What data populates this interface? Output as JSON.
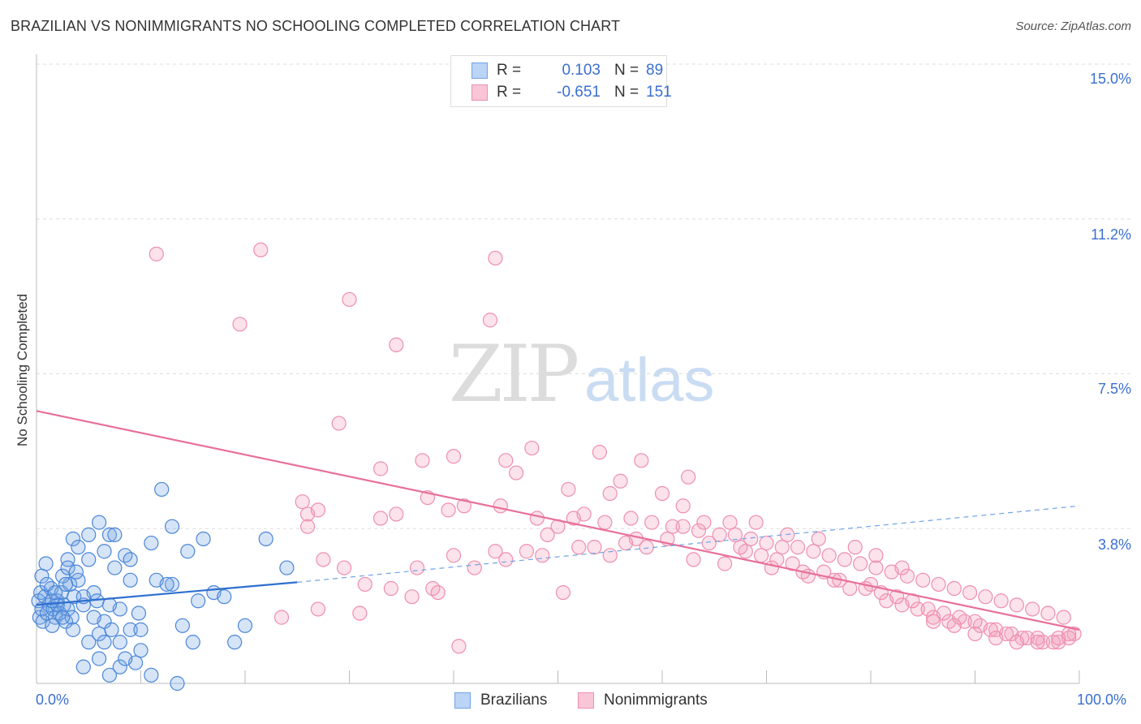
{
  "title": "BRAZILIAN VS NONIMMIGRANTS NO SCHOOLING COMPLETED CORRELATION CHART",
  "source": "Source: ZipAtlas.com",
  "watermark": {
    "zip": "ZIP",
    "atlas": "atlas"
  },
  "legend": {
    "r_label": "R =",
    "n_label": "N =",
    "rows": [
      {
        "r": "0.103",
        "n": "89",
        "color": "#6fa3e8",
        "fill": "#bcd4f5"
      },
      {
        "r": "-0.651",
        "n": "151",
        "color": "#ee8fae",
        "fill": "#f8c6d6"
      }
    ]
  },
  "bottom_legend": [
    {
      "label": "Brazilians"
    },
    {
      "label": "Nonimmigrants"
    }
  ],
  "chart_data": {
    "type": "scatter",
    "xlabel": "",
    "ylabel": "No Schooling Completed",
    "x_ticks": [
      "0.0%",
      "100.0%"
    ],
    "y_ticks": [
      "15.0%",
      "11.2%",
      "7.5%",
      "3.8%"
    ],
    "xlim": [
      0,
      100
    ],
    "ylim": [
      0,
      15.5
    ],
    "grid": true,
    "colors": {
      "brazilians": "#4a86d8",
      "nonimmigrants": "#ea7fa3"
    },
    "series": [
      {
        "name": "Brazilians",
        "trend": {
          "x0": 0,
          "y0": 1.9,
          "x1": 25,
          "y1": 2.45,
          "dash_to_x": 100,
          "dash_to_y": 4.3
        },
        "points": [
          [
            0.2,
            2.0
          ],
          [
            0.3,
            1.6
          ],
          [
            0.4,
            2.2
          ],
          [
            0.5,
            1.8
          ],
          [
            0.6,
            1.5
          ],
          [
            0.8,
            2.1
          ],
          [
            1.0,
            1.7
          ],
          [
            1.2,
            1.9
          ],
          [
            1.4,
            2.3
          ],
          [
            1.6,
            1.8
          ],
          [
            1.8,
            1.6
          ],
          [
            2.0,
            2.0
          ],
          [
            2.2,
            1.7
          ],
          [
            2.4,
            2.2
          ],
          [
            2.6,
            1.9
          ],
          [
            2.8,
            1.5
          ],
          [
            3.0,
            1.8
          ],
          [
            3.2,
            2.4
          ],
          [
            3.4,
            1.6
          ],
          [
            3.6,
            2.1
          ],
          [
            0.5,
            2.6
          ],
          [
            1.0,
            2.4
          ],
          [
            1.5,
            1.4
          ],
          [
            2.0,
            1.9
          ],
          [
            2.5,
            2.6
          ],
          [
            3.0,
            3.0
          ],
          [
            3.5,
            1.3
          ],
          [
            4.0,
            2.5
          ],
          [
            4.5,
            1.9
          ],
          [
            5.0,
            1.0
          ],
          [
            5.5,
            2.2
          ],
          [
            6.0,
            1.2
          ],
          [
            6.5,
            3.2
          ],
          [
            7.0,
            3.6
          ],
          [
            7.5,
            2.8
          ],
          [
            8.0,
            1.8
          ],
          [
            8.5,
            3.1
          ],
          [
            9.0,
            2.5
          ],
          [
            3.5,
            3.5
          ],
          [
            5.0,
            3.6
          ],
          [
            6.0,
            3.9
          ],
          [
            7.5,
            3.6
          ],
          [
            9.0,
            3.0
          ],
          [
            11.0,
            3.4
          ],
          [
            12.0,
            4.7
          ],
          [
            13.0,
            2.4
          ],
          [
            14.0,
            1.4
          ],
          [
            15.0,
            1.0
          ],
          [
            16.0,
            3.5
          ],
          [
            17.0,
            2.2
          ],
          [
            18.0,
            2.1
          ],
          [
            19.0,
            1.0
          ],
          [
            10.0,
            0.8
          ],
          [
            8.0,
            0.4
          ],
          [
            7.0,
            0.2
          ],
          [
            9.5,
            0.5
          ],
          [
            11.0,
            0.2
          ],
          [
            13.5,
            0.0
          ],
          [
            6.0,
            0.6
          ],
          [
            4.5,
            0.4
          ],
          [
            5.0,
            3.0
          ],
          [
            4.0,
            3.3
          ],
          [
            3.0,
            2.8
          ],
          [
            2.5,
            1.6
          ],
          [
            1.5,
            2.0
          ],
          [
            6.5,
            1.5
          ],
          [
            8.0,
            1.0
          ],
          [
            9.0,
            1.3
          ],
          [
            10.0,
            1.3
          ],
          [
            11.5,
            2.5
          ],
          [
            12.5,
            2.4
          ],
          [
            13.0,
            3.8
          ],
          [
            14.5,
            3.2
          ],
          [
            15.5,
            2.0
          ],
          [
            20.0,
            1.4
          ],
          [
            22.0,
            3.5
          ],
          [
            24.0,
            2.8
          ],
          [
            7.0,
            1.9
          ],
          [
            5.5,
            1.6
          ],
          [
            6.5,
            1.0
          ],
          [
            8.5,
            0.6
          ],
          [
            4.5,
            2.1
          ],
          [
            3.8,
            2.7
          ],
          [
            2.8,
            2.4
          ],
          [
            1.8,
            2.2
          ],
          [
            0.9,
            2.9
          ],
          [
            5.8,
            2.0
          ],
          [
            7.2,
            1.3
          ],
          [
            9.8,
            1.7
          ]
        ]
      },
      {
        "name": "Nonimmigrants",
        "trend": {
          "x0": 0,
          "y0": 6.6,
          "x1": 100,
          "y1": 1.3
        },
        "points": [
          [
            11.5,
            10.4
          ],
          [
            21.5,
            10.5
          ],
          [
            19.5,
            8.7
          ],
          [
            30.0,
            9.3
          ],
          [
            34.5,
            8.2
          ],
          [
            43.5,
            8.8
          ],
          [
            44.0,
            10.3
          ],
          [
            29.0,
            6.3
          ],
          [
            33.0,
            5.2
          ],
          [
            37.0,
            5.4
          ],
          [
            40.0,
            5.5
          ],
          [
            45.0,
            5.4
          ],
          [
            46.0,
            5.1
          ],
          [
            47.5,
            5.7
          ],
          [
            51.0,
            4.7
          ],
          [
            54.0,
            5.6
          ],
          [
            55.0,
            4.6
          ],
          [
            56.0,
            4.9
          ],
          [
            58.0,
            5.4
          ],
          [
            60.0,
            4.6
          ],
          [
            62.5,
            5.0
          ],
          [
            25.5,
            4.4
          ],
          [
            26.0,
            4.1
          ],
          [
            27.0,
            4.2
          ],
          [
            33.0,
            4.0
          ],
          [
            34.5,
            4.1
          ],
          [
            37.5,
            4.5
          ],
          [
            39.5,
            4.2
          ],
          [
            41.0,
            4.3
          ],
          [
            44.5,
            4.3
          ],
          [
            48.0,
            4.0
          ],
          [
            50.0,
            3.8
          ],
          [
            51.5,
            4.0
          ],
          [
            52.5,
            4.1
          ],
          [
            54.5,
            3.9
          ],
          [
            57.0,
            4.0
          ],
          [
            59.0,
            3.9
          ],
          [
            61.0,
            3.8
          ],
          [
            62.0,
            3.8
          ],
          [
            63.5,
            3.7
          ],
          [
            65.5,
            3.6
          ],
          [
            67.0,
            3.6
          ],
          [
            68.5,
            3.5
          ],
          [
            70.0,
            3.4
          ],
          [
            71.5,
            3.3
          ],
          [
            73.0,
            3.3
          ],
          [
            74.5,
            3.2
          ],
          [
            76.0,
            3.1
          ],
          [
            77.5,
            3.0
          ],
          [
            79.0,
            2.9
          ],
          [
            80.5,
            2.8
          ],
          [
            82.0,
            2.7
          ],
          [
            83.5,
            2.6
          ],
          [
            85.0,
            2.5
          ],
          [
            86.5,
            2.4
          ],
          [
            88.0,
            2.3
          ],
          [
            89.5,
            2.2
          ],
          [
            91.0,
            2.1
          ],
          [
            92.5,
            2.0
          ],
          [
            94.0,
            1.9
          ],
          [
            95.5,
            1.8
          ],
          [
            97.0,
            1.7
          ],
          [
            98.5,
            1.6
          ],
          [
            99.5,
            1.2
          ],
          [
            26.0,
            3.8
          ],
          [
            27.5,
            3.0
          ],
          [
            29.5,
            2.8
          ],
          [
            31.5,
            2.4
          ],
          [
            34.0,
            2.3
          ],
          [
            36.0,
            2.1
          ],
          [
            38.0,
            2.3
          ],
          [
            40.0,
            3.1
          ],
          [
            42.0,
            2.8
          ],
          [
            45.0,
            3.0
          ],
          [
            47.0,
            3.2
          ],
          [
            49.0,
            3.6
          ],
          [
            52.0,
            3.3
          ],
          [
            55.0,
            3.1
          ],
          [
            57.5,
            3.5
          ],
          [
            60.5,
            3.5
          ],
          [
            63.0,
            3.0
          ],
          [
            66.0,
            2.9
          ],
          [
            68.0,
            3.2
          ],
          [
            70.5,
            2.8
          ],
          [
            72.5,
            2.9
          ],
          [
            74.0,
            2.6
          ],
          [
            76.5,
            2.5
          ],
          [
            78.0,
            2.3
          ],
          [
            80.0,
            2.4
          ],
          [
            81.5,
            2.0
          ],
          [
            83.0,
            1.9
          ],
          [
            84.5,
            1.8
          ],
          [
            86.0,
            1.6
          ],
          [
            87.5,
            1.5
          ],
          [
            89.0,
            1.5
          ],
          [
            90.5,
            1.4
          ],
          [
            92.0,
            1.3
          ],
          [
            93.5,
            1.2
          ],
          [
            95.0,
            1.1
          ],
          [
            96.5,
            1.0
          ],
          [
            98.0,
            1.0
          ],
          [
            99.0,
            1.1
          ],
          [
            23.5,
            1.6
          ],
          [
            27.0,
            1.8
          ],
          [
            38.5,
            2.2
          ],
          [
            40.5,
            0.9
          ],
          [
            50.5,
            2.2
          ],
          [
            31.0,
            1.7
          ],
          [
            36.5,
            2.8
          ],
          [
            44.0,
            3.2
          ],
          [
            48.5,
            3.1
          ],
          [
            53.5,
            3.3
          ],
          [
            56.5,
            3.4
          ],
          [
            58.5,
            3.3
          ],
          [
            64.5,
            3.4
          ],
          [
            67.5,
            3.3
          ],
          [
            69.5,
            3.1
          ],
          [
            71.0,
            3.0
          ],
          [
            73.5,
            2.7
          ],
          [
            75.5,
            2.7
          ],
          [
            77.0,
            2.5
          ],
          [
            79.5,
            2.3
          ],
          [
            81.0,
            2.2
          ],
          [
            82.5,
            2.1
          ],
          [
            84.0,
            2.0
          ],
          [
            85.5,
            1.8
          ],
          [
            87.0,
            1.7
          ],
          [
            88.5,
            1.6
          ],
          [
            90.0,
            1.5
          ],
          [
            91.5,
            1.3
          ],
          [
            93.0,
            1.2
          ],
          [
            94.5,
            1.1
          ],
          [
            96.0,
            1.1
          ],
          [
            97.5,
            1.0
          ],
          [
            99.0,
            1.2
          ],
          [
            86.0,
            1.5
          ],
          [
            88.0,
            1.4
          ],
          [
            90.0,
            1.2
          ],
          [
            92.0,
            1.1
          ],
          [
            94.0,
            1.0
          ],
          [
            96.0,
            1.0
          ],
          [
            98.0,
            1.1
          ],
          [
            62.0,
            4.3
          ],
          [
            64.0,
            3.9
          ],
          [
            66.5,
            3.9
          ],
          [
            69.0,
            3.9
          ],
          [
            72.0,
            3.6
          ],
          [
            75.0,
            3.5
          ],
          [
            78.5,
            3.3
          ],
          [
            80.5,
            3.1
          ],
          [
            83.0,
            2.8
          ]
        ]
      }
    ]
  }
}
